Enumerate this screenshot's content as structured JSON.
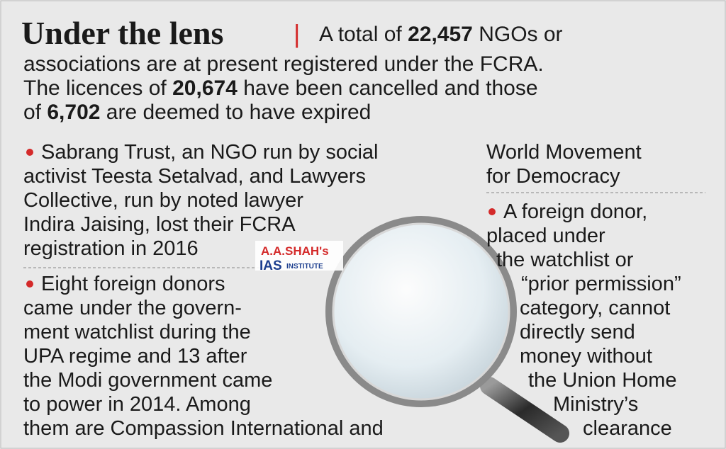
{
  "header": {
    "title": "Under the lens",
    "separator": "|",
    "intro": [
      [
        "A total of ",
        "22,457",
        " NGOs or"
      ],
      [
        "associations are at present registered under the FCRA."
      ],
      [
        "The licences of ",
        "20,674",
        " have been cancelled and those"
      ],
      [
        "of ",
        "6,702",
        " are deemed to have expired"
      ]
    ]
  },
  "left_column": {
    "bullets": [
      {
        "lines": [
          "Sabrang Trust, an NGO run by social",
          "activist Teesta Setalvad, and Lawyers",
          "Collective, run by noted lawyer",
          "Indira Jaising, lost their FCRA",
          "registration in 2016"
        ]
      },
      {
        "lines": [
          "Eight foreign donors",
          "came under the govern-",
          "ment watchlist during the",
          "UPA regime and 13 after",
          "the Modi government came",
          "to power in 2014. Among",
          "them are Compassion International and"
        ]
      }
    ]
  },
  "right_column": {
    "continuation": [
      "World Movement",
      "for Democracy"
    ],
    "bullets": [
      {
        "lines": [
          "A foreign donor,",
          "placed under",
          "the watchlist or",
          "“prior permission”",
          "category, cannot",
          "directly send",
          "money without",
          "the Union Home",
          "Ministry’s",
          "clearance"
        ]
      }
    ]
  },
  "watermark": {
    "name": "A.A.SHAH's",
    "brand": "IAS",
    "subtitle": "INSTITUTE"
  }
}
